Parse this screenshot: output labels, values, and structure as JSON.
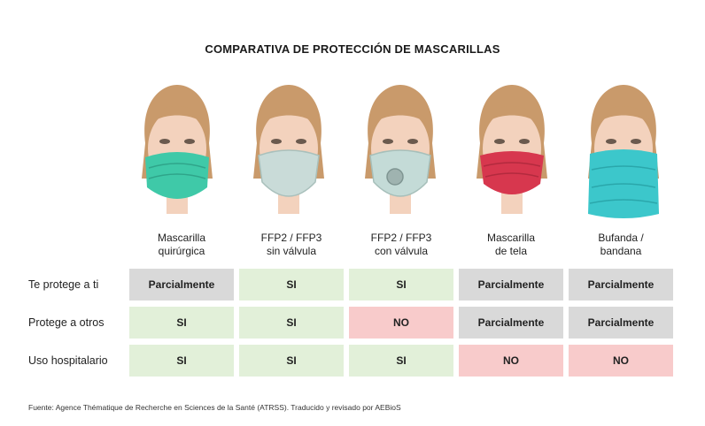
{
  "title": "COMPARATIVA DE PROTECCIÓN DE MASCARILLAS",
  "columns": [
    {
      "line1": "Mascarilla",
      "line2": "quirúrgica",
      "mask_color": "#3fc9a8"
    },
    {
      "line1": "FFP2 / FFP3",
      "line2": "sin válvula",
      "mask_color": "#c9dbd8"
    },
    {
      "line1": "FFP2 / FFP3",
      "line2": "con válvula",
      "mask_color": "#c4dbd7"
    },
    {
      "line1": "Mascarilla",
      "line2": "de tela",
      "mask_color": "#d7374e"
    },
    {
      "line1": "Bufanda /",
      "line2": "bandana",
      "mask_color": "#3cc7cb"
    }
  ],
  "rows": [
    {
      "label": "Te protege a ti",
      "cells": [
        "Parcialmente",
        "SI",
        "SI",
        "Parcialmente",
        "Parcialmente"
      ]
    },
    {
      "label": "Protege a otros",
      "cells": [
        "SI",
        "SI",
        "NO",
        "Parcialmente",
        "Parcialmente"
      ]
    },
    {
      "label": "Uso hospitalario",
      "cells": [
        "SI",
        "SI",
        "SI",
        "NO",
        "NO"
      ]
    }
  ],
  "footer": "Fuente: Agence Thématique de Recherche en Sciences de la Santé (ATRSS). Traducido y revisado por AEBioS",
  "colors": {
    "partial": "#d9d9d9",
    "yes": "#e2f0d9",
    "no": "#f8cbcb",
    "skin": "#f3d2bd",
    "hair": "#c99a6b"
  }
}
